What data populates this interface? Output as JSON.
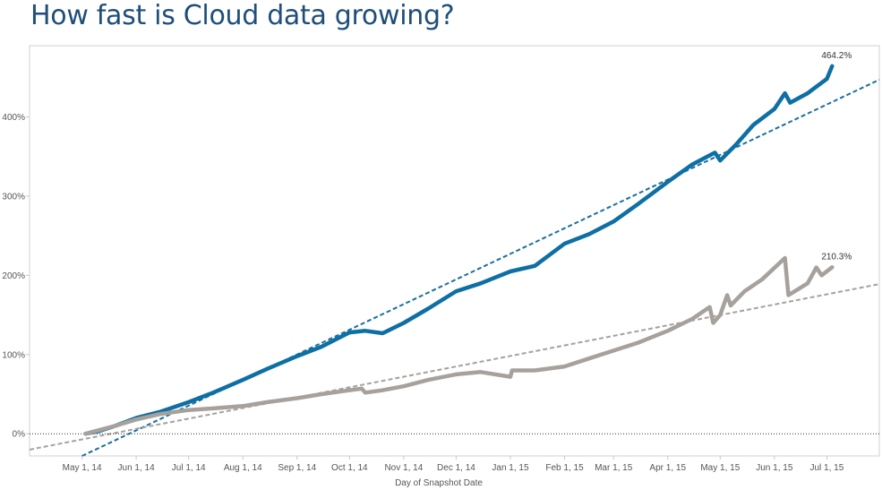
{
  "page": {
    "title": "How fast is Cloud data growing?"
  },
  "chart_data": {
    "type": "line",
    "title": "How fast is Cloud data growing?",
    "xlabel": "Day of Snapshot Date",
    "ylabel": "",
    "x_tick_labels": [
      "May 1, 14",
      "Jun 1, 14",
      "Jul 1, 14",
      "Aug 1, 14",
      "Sep 1, 14",
      "Oct 1, 14",
      "Nov 1, 14",
      "Dec 1, 14",
      "Jan 1, 15",
      "Feb 1, 15",
      "Mar 1, 15",
      "Apr 1, 15",
      "May 1, 15",
      "Jun 1, 15",
      "Jul 1, 15"
    ],
    "x_tick_dates": [
      "2014-05-01",
      "2014-06-01",
      "2014-07-01",
      "2014-08-01",
      "2014-09-01",
      "2014-10-01",
      "2014-11-01",
      "2014-12-01",
      "2015-01-01",
      "2015-02-01",
      "2015-03-01",
      "2015-04-01",
      "2015-05-01",
      "2015-06-01",
      "2015-07-01"
    ],
    "y_tick_labels": [
      "0%",
      "100%",
      "200%",
      "300%",
      "400%"
    ],
    "y_tick_values": [
      0,
      100,
      200,
      300,
      400
    ],
    "xlim": [
      "2014-04-01",
      "2015-07-31"
    ],
    "ylim": [
      -28,
      490
    ],
    "grid": false,
    "zero_line": true,
    "series": [
      {
        "color": "#0e6fa4",
        "end_label": "464.2%",
        "points": [
          [
            "2014-05-03",
            0
          ],
          [
            "2014-05-10",
            3
          ],
          [
            "2014-05-20",
            10
          ],
          [
            "2014-06-01",
            20
          ],
          [
            "2014-06-15",
            28
          ],
          [
            "2014-07-01",
            40
          ],
          [
            "2014-07-15",
            52
          ],
          [
            "2014-08-01",
            68
          ],
          [
            "2014-08-15",
            82
          ],
          [
            "2014-09-01",
            98
          ],
          [
            "2014-09-15",
            110
          ],
          [
            "2014-10-01",
            128
          ],
          [
            "2014-10-10",
            130
          ],
          [
            "2014-10-20",
            127
          ],
          [
            "2014-11-01",
            140
          ],
          [
            "2014-11-15",
            158
          ],
          [
            "2014-12-01",
            180
          ],
          [
            "2014-12-15",
            190
          ],
          [
            "2015-01-01",
            205
          ],
          [
            "2015-01-15",
            212
          ],
          [
            "2015-02-01",
            240
          ],
          [
            "2015-02-15",
            252
          ],
          [
            "2015-03-01",
            268
          ],
          [
            "2015-03-15",
            290
          ],
          [
            "2015-04-01",
            318
          ],
          [
            "2015-04-15",
            340
          ],
          [
            "2015-04-28",
            355
          ],
          [
            "2015-05-01",
            345
          ],
          [
            "2015-05-10",
            365
          ],
          [
            "2015-05-20",
            390
          ],
          [
            "2015-06-01",
            410
          ],
          [
            "2015-06-07",
            430
          ],
          [
            "2015-06-10",
            418
          ],
          [
            "2015-06-20",
            430
          ],
          [
            "2015-07-01",
            448
          ],
          [
            "2015-07-04",
            464.2
          ]
        ]
      },
      {
        "color": "#a7a19c",
        "end_label": "210.3%",
        "points": [
          [
            "2014-05-03",
            0
          ],
          [
            "2014-05-20",
            10
          ],
          [
            "2014-06-01",
            18
          ],
          [
            "2014-06-15",
            25
          ],
          [
            "2014-07-01",
            30
          ],
          [
            "2014-07-15",
            32
          ],
          [
            "2014-08-01",
            35
          ],
          [
            "2014-08-15",
            40
          ],
          [
            "2014-09-01",
            45
          ],
          [
            "2014-09-15",
            50
          ],
          [
            "2014-10-01",
            55
          ],
          [
            "2014-10-08",
            57
          ],
          [
            "2014-10-10",
            52
          ],
          [
            "2014-10-20",
            55
          ],
          [
            "2014-11-01",
            60
          ],
          [
            "2014-11-15",
            68
          ],
          [
            "2014-12-01",
            75
          ],
          [
            "2014-12-15",
            78
          ],
          [
            "2015-01-01",
            72
          ],
          [
            "2015-01-02",
            80
          ],
          [
            "2015-01-15",
            80
          ],
          [
            "2015-02-01",
            85
          ],
          [
            "2015-02-15",
            95
          ],
          [
            "2015-03-01",
            105
          ],
          [
            "2015-03-15",
            115
          ],
          [
            "2015-04-01",
            130
          ],
          [
            "2015-04-15",
            145
          ],
          [
            "2015-04-25",
            160
          ],
          [
            "2015-04-27",
            140
          ],
          [
            "2015-05-01",
            150
          ],
          [
            "2015-05-05",
            175
          ],
          [
            "2015-05-07",
            162
          ],
          [
            "2015-05-15",
            180
          ],
          [
            "2015-05-25",
            195
          ],
          [
            "2015-06-07",
            222
          ],
          [
            "2015-06-09",
            175
          ],
          [
            "2015-06-20",
            190
          ],
          [
            "2015-06-25",
            210
          ],
          [
            "2015-06-28",
            200
          ],
          [
            "2015-07-04",
            210.3
          ]
        ]
      }
    ],
    "trend_lines": [
      {
        "color": "#1a6fa0",
        "from": [
          "2014-05-01",
          -28
        ],
        "to": [
          "2015-07-31",
          447
        ]
      },
      {
        "color": "#a7a19c",
        "from": [
          "2014-04-01",
          -20
        ],
        "to": [
          "2015-07-31",
          189
        ]
      }
    ]
  }
}
